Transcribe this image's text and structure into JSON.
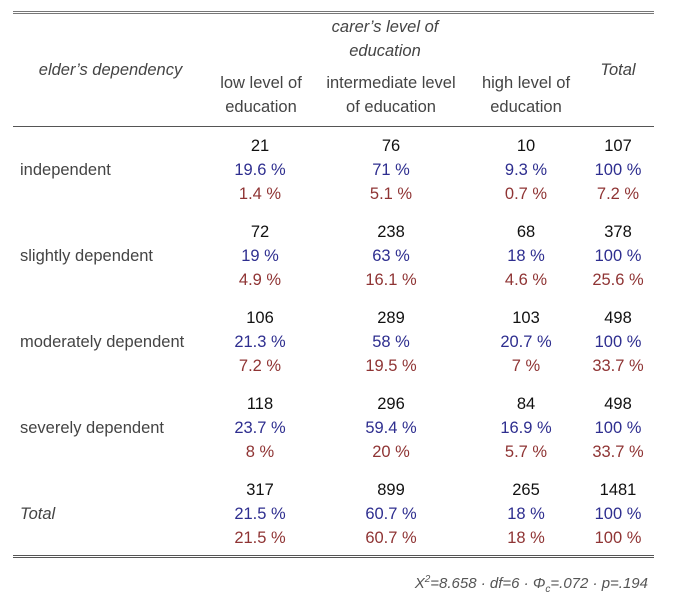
{
  "header": {
    "row_var": "elder’s dependency",
    "col_var": [
      "carer’s level of",
      "education"
    ],
    "columns": [
      [
        "low level of",
        "education"
      ],
      [
        "intermediate level",
        "of education"
      ],
      [
        "high level of",
        "education"
      ]
    ],
    "total": "Total"
  },
  "rows": [
    {
      "label": "independent",
      "cells": [
        [
          "21",
          "19.6 %",
          "1.4 %"
        ],
        [
          "76",
          "71 %",
          "5.1 %"
        ],
        [
          "10",
          "9.3 %",
          "0.7 %"
        ],
        [
          "107",
          "100 %",
          "7.2 %"
        ]
      ]
    },
    {
      "label": "slightly dependent",
      "cells": [
        [
          "72",
          "19 %",
          "4.9 %"
        ],
        [
          "238",
          "63 %",
          "16.1 %"
        ],
        [
          "68",
          "18 %",
          "4.6 %"
        ],
        [
          "378",
          "100 %",
          "25.6 %"
        ]
      ]
    },
    {
      "label": "moderately dependent",
      "cells": [
        [
          "106",
          "21.3 %",
          "7.2 %"
        ],
        [
          "289",
          "58 %",
          "19.5 %"
        ],
        [
          "103",
          "20.7 %",
          "7 %"
        ],
        [
          "498",
          "100 %",
          "33.7 %"
        ]
      ]
    },
    {
      "label": "severely dependent",
      "cells": [
        [
          "118",
          "23.7 %",
          "8 %"
        ],
        [
          "296",
          "59.4 %",
          "20 %"
        ],
        [
          "84",
          "16.9 %",
          "5.7 %"
        ],
        [
          "498",
          "100 %",
          "33.7 %"
        ]
      ]
    },
    {
      "label": "Total",
      "cells": [
        [
          "317",
          "21.5 %",
          "21.5 %"
        ],
        [
          "899",
          "60.7 %",
          "60.7 %"
        ],
        [
          "265",
          "18 %",
          "18 %"
        ],
        [
          "1481",
          "100 %",
          "100 %"
        ]
      ]
    }
  ],
  "summary": {
    "chi": "X",
    "chi_sup": "2",
    "chi_rest": "=8.658 · df=6 · Φ",
    "phi_sub": "c",
    "phi_rest": "=.072 · p=.194"
  },
  "colors": {
    "count": "#111111",
    "row_pct": "#2e2e8f",
    "col_pct": "#8f3434"
  }
}
